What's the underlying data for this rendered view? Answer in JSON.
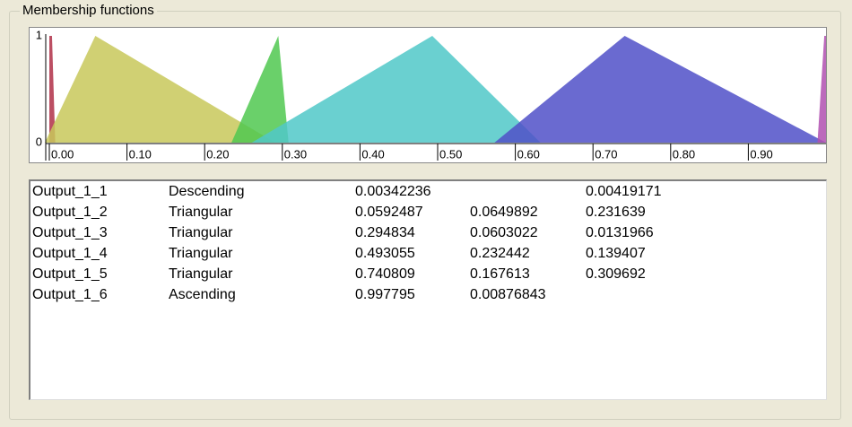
{
  "group_title": "Membership functions",
  "chart": {
    "xlim": [
      0,
      1
    ],
    "ylim": [
      0,
      1
    ],
    "xticks": [
      {
        "value": 0,
        "label": "0.00"
      },
      {
        "value": 0.1,
        "label": "0.10"
      },
      {
        "value": 0.2,
        "label": "0.20"
      },
      {
        "value": 0.3,
        "label": "0.30"
      },
      {
        "value": 0.4,
        "label": "0.40"
      },
      {
        "value": 0.5,
        "label": "0.50"
      },
      {
        "value": 0.6,
        "label": "0.60"
      },
      {
        "value": 0.7,
        "label": "0.70"
      },
      {
        "value": 0.8,
        "label": "0.80"
      },
      {
        "value": 0.9,
        "label": "0.90"
      }
    ],
    "yticks": [
      0,
      1
    ]
  },
  "table": {
    "rows": [
      {
        "name": "Output_1_1",
        "shape": "Descending",
        "params": [
          0.00342236,
          null,
          0.00419171
        ],
        "color": "#b03048"
      },
      {
        "name": "Output_1_2",
        "shape": "Triangular",
        "params": [
          0.0592487,
          0.0649892,
          0.231639
        ],
        "color": "#c8c85a"
      },
      {
        "name": "Output_1_3",
        "shape": "Triangular",
        "params": [
          0.294834,
          0.0603022,
          0.0131966
        ],
        "color": "#50c850"
      },
      {
        "name": "Output_1_4",
        "shape": "Triangular",
        "params": [
          0.493055,
          0.232442,
          0.139407
        ],
        "color": "#50c8c8"
      },
      {
        "name": "Output_1_5",
        "shape": "Triangular",
        "params": [
          0.740809,
          0.167613,
          0.309692
        ],
        "color": "#5050c8"
      },
      {
        "name": "Output_1_6",
        "shape": "Ascending",
        "params": [
          0.997795,
          0.00876843,
          null
        ],
        "color": "#b050b0"
      }
    ]
  }
}
